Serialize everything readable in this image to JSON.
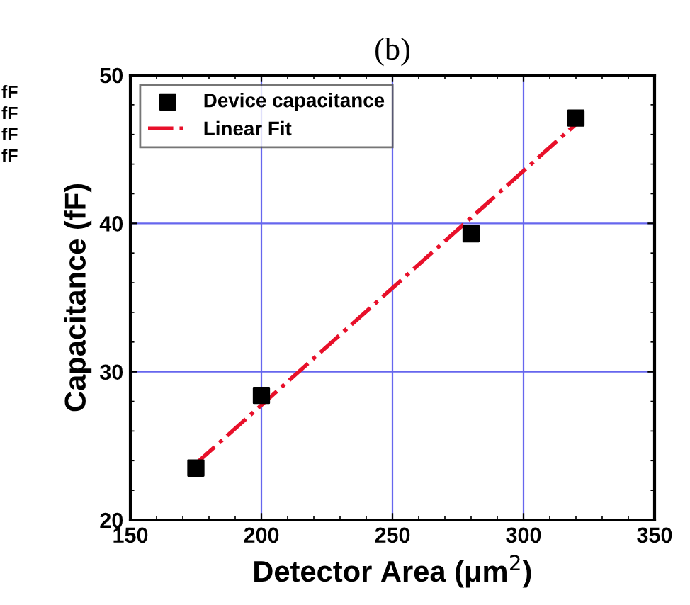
{
  "chart_data": {
    "type": "scatter",
    "title": "(b)",
    "xlabel": "Detector Area (μm$^{2}$)",
    "ylabel": "Capacitance (fF)",
    "annotations": [
      "fF",
      "fF",
      "fF",
      "fF"
    ],
    "series": [
      {
        "name": "Device capacitance",
        "color": "#000000",
        "marker": "square",
        "x": [
          175,
          200,
          280,
          320
        ],
        "values": [
          23.5,
          28.4,
          39.3,
          47.1
        ]
      },
      {
        "name": "Linear Fit",
        "type": "line",
        "color": "#e8102a",
        "line_style": "dashdot",
        "marker": "none",
        "x": [
          175,
          320
        ],
        "values": [
          23.8,
          46.7
        ]
      }
    ],
    "xlim": [
      150,
      350
    ],
    "xticks": [
      150,
      200,
      250,
      300,
      350
    ],
    "ylim": [
      20,
      50
    ],
    "yticks": [
      20,
      30,
      40,
      50
    ],
    "grid": true,
    "legend": "top left"
  }
}
